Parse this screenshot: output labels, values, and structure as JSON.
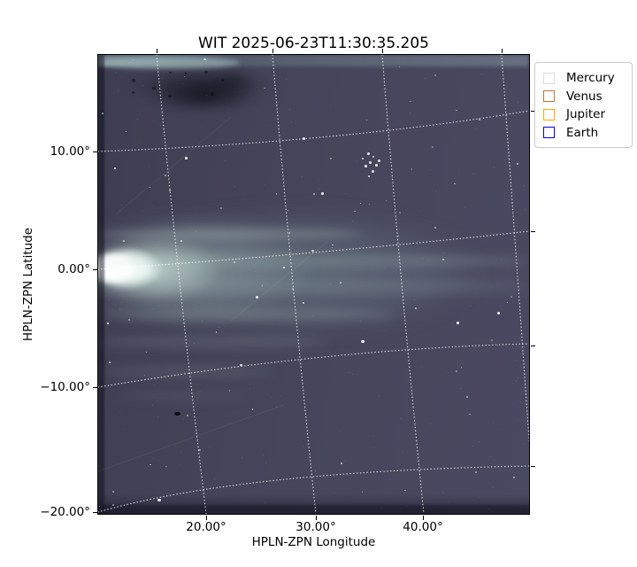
{
  "figure": {
    "title": "WIT 2025-06-23T11:30:35.205",
    "xlabel": "HPLN-ZPN Longitude",
    "ylabel": "HPLN-ZPN Latitude"
  },
  "axes": {
    "x_tick_labels": [
      "20.00°",
      "30.00°",
      "40.00°"
    ],
    "y_tick_labels": [
      "10.00°",
      "0.00°",
      "−10.00°",
      "−20.00°"
    ]
  },
  "legend": {
    "items": [
      {
        "label": "Mercury",
        "color": "#dcdcdc"
      },
      {
        "label": "Venus",
        "color": "#c87137"
      },
      {
        "label": "Jupiter",
        "color": "#ffaa00"
      },
      {
        "label": "Earth",
        "color": "#0000ee"
      }
    ]
  },
  "chart_data": {
    "type": "heatmap",
    "title": "WIT 2025-06-23T11:30:35.205",
    "xlabel": "HPLN-ZPN Longitude",
    "ylabel": "HPLN-ZPN Latitude",
    "x_tick_values_deg": [
      20,
      30,
      40
    ],
    "y_tick_values_deg": [
      10,
      0,
      -10,
      -20
    ],
    "xlim_deg": [
      10.5,
      49.5
    ],
    "ylim_deg": [
      -20.3,
      18.2
    ],
    "projection": "HPLN-ZPN zenithal projection; dotted white celestial grid, lines curved (longitude lines lean right going down, latitude lines rise toward the right)",
    "grid": "dotted white, 10-degree spacing",
    "legend_position": "outside upper right",
    "legend_entries": [
      "Mercury",
      "Venus",
      "Jupiter",
      "Earth"
    ],
    "image_description": "White-light heliospheric imager frame: intense white-green solar glow at the left edge centered near 0° latitude with horizontal streaks fading rightward into a dark blue-purple starfield; dark artifact blobs along the top-left edge; small star cluster near 35° longitude, 9° latitude; dark speck near 17° longitude, −12° latitude; darker band along the bottom edge; no planet markers visible in the frame",
    "colors": {
      "background_sky": "#454459",
      "glow_core": "#ffffff",
      "glow_halo": "#9ab5b2",
      "grid_line": "#ffffff"
    }
  }
}
